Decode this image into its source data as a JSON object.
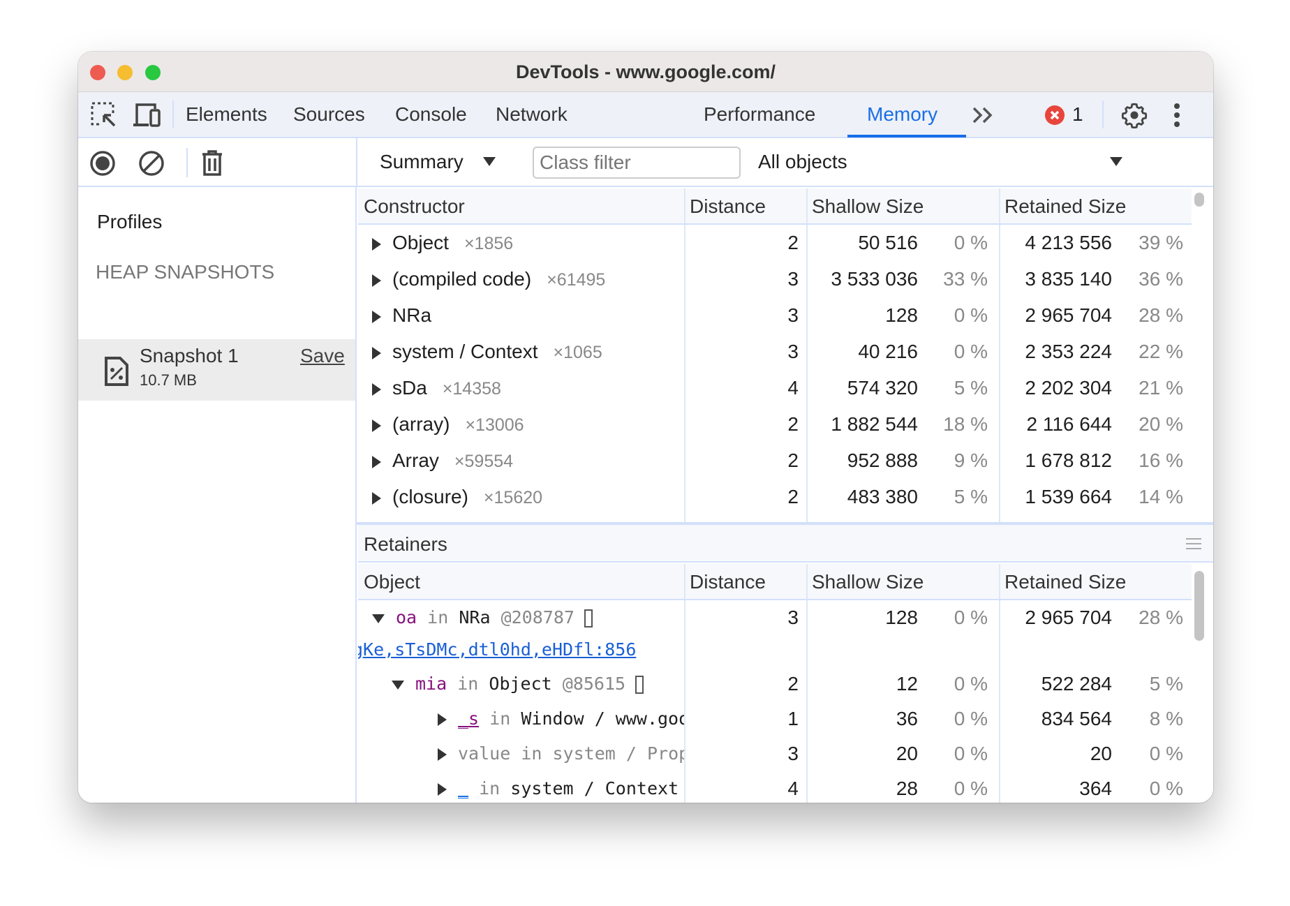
{
  "window": {
    "title": "DevTools - www.google.com/"
  },
  "tabs": [
    {
      "label": "Elements"
    },
    {
      "label": "Sources"
    },
    {
      "label": "Console"
    },
    {
      "label": "Network"
    },
    {
      "label": "Performance"
    },
    {
      "label": "Memory",
      "active": true
    }
  ],
  "errors": {
    "count": "1"
  },
  "toolbar": {
    "view": "Summary",
    "class_filter_placeholder": "Class filter",
    "filter": "All objects"
  },
  "sidebar": {
    "profiles": "Profiles",
    "section": "HEAP SNAPSHOTS",
    "snapshot": {
      "name": "Snapshot 1",
      "size": "10.7 MB",
      "save": "Save"
    }
  },
  "summary": {
    "headers": [
      "Constructor",
      "Distance",
      "Shallow Size",
      "Retained Size"
    ],
    "rows": [
      {
        "name": "Object",
        "count": "×1856",
        "distance": "2",
        "shallow": "50 516",
        "shallow_pct": "0 %",
        "retained": "4 213 556",
        "retained_pct": "39 %"
      },
      {
        "name": "(compiled code)",
        "count": "×61495",
        "distance": "3",
        "shallow": "3 533 036",
        "shallow_pct": "33 %",
        "retained": "3 835 140",
        "retained_pct": "36 %"
      },
      {
        "name": "NRa",
        "count": "",
        "distance": "3",
        "shallow": "128",
        "shallow_pct": "0 %",
        "retained": "2 965 704",
        "retained_pct": "28 %"
      },
      {
        "name": "system / Context",
        "count": "×1065",
        "distance": "3",
        "shallow": "40 216",
        "shallow_pct": "0 %",
        "retained": "2 353 224",
        "retained_pct": "22 %"
      },
      {
        "name": "sDa",
        "count": "×14358",
        "distance": "4",
        "shallow": "574 320",
        "shallow_pct": "5 %",
        "retained": "2 202 304",
        "retained_pct": "21 %"
      },
      {
        "name": "(array)",
        "count": "×13006",
        "distance": "2",
        "shallow": "1 882 544",
        "shallow_pct": "18 %",
        "retained": "2 116 644",
        "retained_pct": "20 %"
      },
      {
        "name": "Array",
        "count": "×59554",
        "distance": "2",
        "shallow": "952 888",
        "shallow_pct": "9 %",
        "retained": "1 678 812",
        "retained_pct": "16 %"
      },
      {
        "name": "(closure)",
        "count": "×15620",
        "distance": "2",
        "shallow": "483 380",
        "shallow_pct": "5 %",
        "retained": "1 539 664",
        "retained_pct": "14 %"
      }
    ]
  },
  "retainers": {
    "title": "Retainers",
    "headers": [
      "Object",
      "Distance",
      "Shallow Size",
      "Retained Size"
    ],
    "link": "gKe,sTsDMc,dtl0hd,eHDfl:856",
    "rows": [
      {
        "indent": 0,
        "expanded": true,
        "prop": "oa",
        "in": "in",
        "obj": "NRa",
        "id": "@208787",
        "distance": "3",
        "shallow": "128",
        "shallow_pct": "0 %",
        "retained": "2 965 704",
        "retained_pct": "28 %"
      },
      {
        "indent": 1,
        "expanded": true,
        "prop": "mia",
        "in": "in",
        "obj": "Object",
        "id": "@85615",
        "distance": "2",
        "shallow": "12",
        "shallow_pct": "0 %",
        "retained": "522 284",
        "retained_pct": "5 %"
      },
      {
        "indent": 2,
        "expanded": false,
        "prop": "_s",
        "in": "in",
        "obj": "Window / www.goo",
        "id": "",
        "distance": "1",
        "shallow": "36",
        "shallow_pct": "0 %",
        "retained": "834 564",
        "retained_pct": "8 %"
      },
      {
        "indent": 2,
        "expanded": false,
        "prop": "value",
        "in": "in",
        "obj": "system / Prop",
        "id": "",
        "distance": "3",
        "shallow": "20",
        "shallow_pct": "0 %",
        "retained": "20",
        "retained_pct": "0 %",
        "dim": true
      },
      {
        "indent": 2,
        "expanded": false,
        "prop": "_",
        "in": "in",
        "obj": "system / Context",
        "id": "",
        "distance": "4",
        "shallow": "28",
        "shallow_pct": "0 %",
        "retained": "364",
        "retained_pct": "0 %"
      }
    ]
  },
  "colors": {
    "accent": "#1a6ee8",
    "property": "#881280",
    "error": "#e8453c"
  }
}
